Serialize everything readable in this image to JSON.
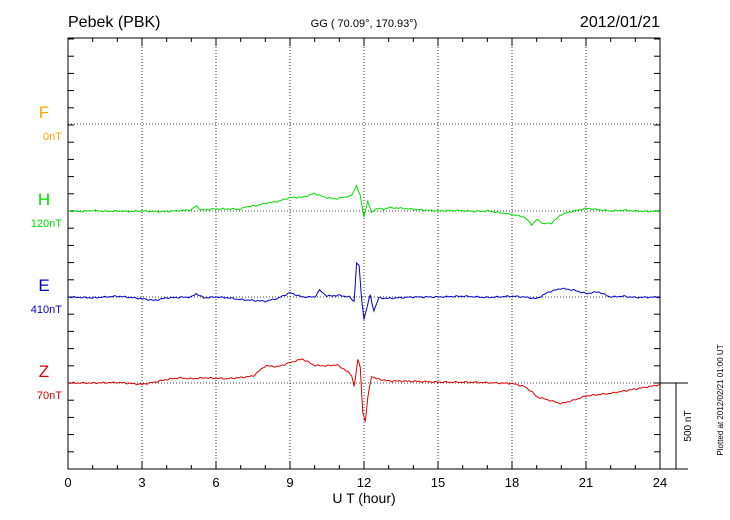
{
  "header": {
    "station": "Pebek (PBK)",
    "coords": "GG ( 70.09°, 170.93°)",
    "date": "2012/01/21"
  },
  "footer": {
    "plotted": "Plotted at 2012/02/21 01:00 UT"
  },
  "chart_data": {
    "type": "line",
    "xlabel": "U T (hour)",
    "xlim": [
      0,
      24
    ],
    "xticks": [
      "0",
      "3",
      "6",
      "9",
      "12",
      "15",
      "18",
      "21",
      "24"
    ],
    "scale_bar_label": "500 nT",
    "scale_bar_nT": 500,
    "channel_spacing_nT": 500,
    "series": [
      {
        "name": "F",
        "offset": "0nT",
        "color": "#ffa500",
        "values": []
      },
      {
        "name": "H",
        "offset": "120nT",
        "color": "#00dd00",
        "points": [
          [
            0,
            0
          ],
          [
            0.5,
            -3
          ],
          [
            1,
            3
          ],
          [
            1.5,
            -2
          ],
          [
            2,
            0
          ],
          [
            2.5,
            -3
          ],
          [
            3,
            1
          ],
          [
            3.5,
            -4
          ],
          [
            4,
            -3
          ],
          [
            4.5,
            2
          ],
          [
            5,
            7
          ],
          [
            5.2,
            30
          ],
          [
            5.4,
            5
          ],
          [
            5.8,
            10
          ],
          [
            6,
            12
          ],
          [
            6.5,
            12
          ],
          [
            7,
            10
          ],
          [
            7.2,
            25
          ],
          [
            7.6,
            30
          ],
          [
            8,
            45
          ],
          [
            8.5,
            55
          ],
          [
            9,
            78
          ],
          [
            9.5,
            80
          ],
          [
            10,
            102
          ],
          [
            10.4,
            80
          ],
          [
            10.8,
            70
          ],
          [
            11.2,
            80
          ],
          [
            11.5,
            90
          ],
          [
            11.7,
            150
          ],
          [
            11.85,
            85
          ],
          [
            12,
            -35
          ],
          [
            12.15,
            60
          ],
          [
            12.3,
            -10
          ],
          [
            12.5,
            15
          ],
          [
            12.8,
            10
          ],
          [
            13,
            20
          ],
          [
            13.5,
            16
          ],
          [
            14,
            10
          ],
          [
            14.5,
            5
          ],
          [
            15,
            0
          ],
          [
            15.5,
            3
          ],
          [
            16,
            2
          ],
          [
            16.5,
            -3
          ],
          [
            17,
            0
          ],
          [
            17.5,
            -10
          ],
          [
            18,
            -20
          ],
          [
            18.5,
            -35
          ],
          [
            18.8,
            -80
          ],
          [
            19,
            -50
          ],
          [
            19.3,
            -75
          ],
          [
            19.6,
            -70
          ],
          [
            20,
            -20
          ],
          [
            20.5,
            0
          ],
          [
            21,
            15
          ],
          [
            21.5,
            8
          ],
          [
            22,
            0
          ],
          [
            22.5,
            5
          ],
          [
            23,
            0
          ],
          [
            23.5,
            -3
          ],
          [
            24,
            0
          ]
        ]
      },
      {
        "name": "E",
        "offset": "410nT",
        "color": "#0000cc",
        "points": [
          [
            0,
            0
          ],
          [
            1,
            -5
          ],
          [
            2,
            5
          ],
          [
            3,
            -10
          ],
          [
            3.5,
            -20
          ],
          [
            4,
            -5
          ],
          [
            5,
            0
          ],
          [
            5.2,
            20
          ],
          [
            5.5,
            -5
          ],
          [
            6,
            0
          ],
          [
            6.5,
            -5
          ],
          [
            7,
            -15
          ],
          [
            7.5,
            -20
          ],
          [
            8,
            -25
          ],
          [
            8.5,
            -8
          ],
          [
            9,
            25
          ],
          [
            9.5,
            0
          ],
          [
            10,
            0
          ],
          [
            10.2,
            40
          ],
          [
            10.5,
            5
          ],
          [
            11,
            10
          ],
          [
            11.4,
            0
          ],
          [
            11.6,
            -25
          ],
          [
            11.7,
            200
          ],
          [
            11.8,
            180
          ],
          [
            11.9,
            -5
          ],
          [
            12,
            -130
          ],
          [
            12.1,
            -70
          ],
          [
            12.25,
            10
          ],
          [
            12.4,
            -80
          ],
          [
            12.6,
            -5
          ],
          [
            13,
            -8
          ],
          [
            14,
            0
          ],
          [
            15,
            0
          ],
          [
            16,
            5
          ],
          [
            17,
            -3
          ],
          [
            18,
            5
          ],
          [
            18.5,
            0
          ],
          [
            19,
            -10
          ],
          [
            19.5,
            30
          ],
          [
            20,
            50
          ],
          [
            20.5,
            40
          ],
          [
            21,
            20
          ],
          [
            21.5,
            30
          ],
          [
            22,
            0
          ],
          [
            22.5,
            5
          ],
          [
            23,
            -3
          ],
          [
            24,
            0
          ]
        ]
      },
      {
        "name": "Z",
        "offset": "70nT",
        "color": "#dd0000",
        "points": [
          [
            0,
            0
          ],
          [
            1,
            0
          ],
          [
            2,
            3
          ],
          [
            3,
            -8
          ],
          [
            3.5,
            5
          ],
          [
            4,
            20
          ],
          [
            4.5,
            30
          ],
          [
            5,
            25
          ],
          [
            5.5,
            30
          ],
          [
            6,
            28
          ],
          [
            6.5,
            25
          ],
          [
            7,
            32
          ],
          [
            7.5,
            40
          ],
          [
            8,
            100
          ],
          [
            8.5,
            95
          ],
          [
            9,
            118
          ],
          [
            9.5,
            140
          ],
          [
            10,
            102
          ],
          [
            10.5,
            100
          ],
          [
            10.9,
            105
          ],
          [
            11.2,
            80
          ],
          [
            11.5,
            45
          ],
          [
            11.6,
            -20
          ],
          [
            11.75,
            135
          ],
          [
            11.85,
            90
          ],
          [
            11.95,
            -170
          ],
          [
            12.05,
            -225
          ],
          [
            12.15,
            -90
          ],
          [
            12.3,
            40
          ],
          [
            12.5,
            25
          ],
          [
            12.7,
            20
          ],
          [
            13,
            12
          ],
          [
            14,
            10
          ],
          [
            15,
            5
          ],
          [
            16,
            5
          ],
          [
            17,
            2
          ],
          [
            18,
            -3
          ],
          [
            18.5,
            -20
          ],
          [
            18.8,
            -50
          ],
          [
            19,
            -80
          ],
          [
            19.5,
            -100
          ],
          [
            20,
            -120
          ],
          [
            20.5,
            -100
          ],
          [
            21,
            -75
          ],
          [
            22,
            -60
          ],
          [
            23,
            -35
          ],
          [
            24,
            -10
          ]
        ]
      }
    ],
    "grid": true
  }
}
